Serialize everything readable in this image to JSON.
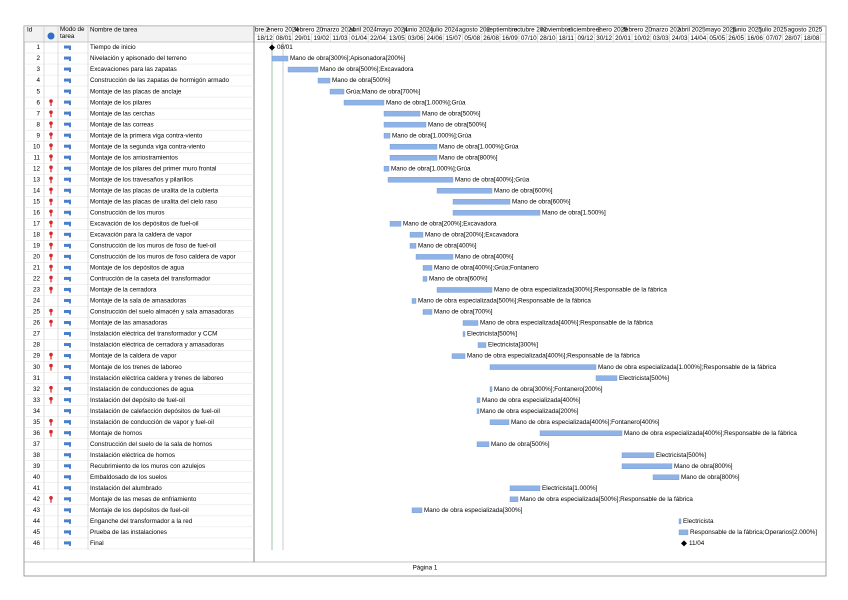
{
  "header": {
    "id": "Id",
    "mode": "Modo de tarea",
    "name": "Nombre de tarea",
    "months": [
      "bre 2",
      "enero 2024",
      "febrero 20",
      "marzo 2024",
      "abril 2024",
      "mayo 2024",
      "junio 2024",
      "julio 2024",
      "agosto 202",
      "septiembre",
      "octubre 202",
      "noviembre",
      "diciembre 2",
      "enero 2025",
      "febrero 20",
      "marzo 202",
      "abril 2025",
      "mayo 2025",
      "junio 2025",
      "julio 2025",
      "agosto 2025"
    ],
    "dates": [
      "18/12",
      "08/01",
      "29/01",
      "19/02",
      "11/03",
      "01/04",
      "22/04",
      "13/05",
      "03/06",
      "24/06",
      "15/07",
      "05/08",
      "26/08",
      "16/09",
      "07/10",
      "28/10",
      "18/11",
      "09/12",
      "30/12",
      "20/01",
      "10/02",
      "03/03",
      "24/03",
      "14/04",
      "05/05",
      "26/05",
      "16/06",
      "07/07",
      "28/07",
      "18/08"
    ]
  },
  "tasks": [
    {
      "id": 1,
      "flag": false,
      "name": "Tiempo de inicio",
      "label": "08/01"
    },
    {
      "id": 2,
      "flag": false,
      "name": "Nivelación y apisonado del terreno",
      "label": "Mano de obra[300%];Apisonadora[200%]"
    },
    {
      "id": 3,
      "flag": false,
      "name": "Excavaciones para las zapatas",
      "label": "Mano de obra[500%];Excavadora"
    },
    {
      "id": 4,
      "flag": false,
      "name": "Construcción de las zapatas de hormigón armado",
      "label": "Mano de obra[500%]"
    },
    {
      "id": 5,
      "flag": false,
      "name": "Montaje de las placas de anclaje",
      "label": "Grúa;Mano de obra[700%]"
    },
    {
      "id": 6,
      "flag": true,
      "name": "Montaje de los pilares",
      "label": "Mano de obra[1.000%];Grúa"
    },
    {
      "id": 7,
      "flag": true,
      "name": "Montaje de las cerchas",
      "label": "Mano de obra[500%]"
    },
    {
      "id": 8,
      "flag": true,
      "name": "Montaje de las correas",
      "label": "Mano de obra[500%]"
    },
    {
      "id": 9,
      "flag": true,
      "name": "Montaje de la primera viga contra-viento",
      "label": "Mano de obra[1.000%];Grúa"
    },
    {
      "id": 10,
      "flag": true,
      "name": "Montaje de la segunda viga contra-viento",
      "label": "Mano de obra[1.000%];Grúa"
    },
    {
      "id": 11,
      "flag": true,
      "name": "Montaje de los arriostramientos",
      "label": "Mano de obra[800%]"
    },
    {
      "id": 12,
      "flag": true,
      "name": "Montaje de los pilares del primer muro frontal",
      "label": "Mano de obra[1.000%];Grúa"
    },
    {
      "id": 13,
      "flag": true,
      "name": "Montaje de los travesaños y pilarillos",
      "label": "Mano de obra[400%];Grúa"
    },
    {
      "id": 14,
      "flag": true,
      "name": "Montaje de las placas de uralita de la cubierta",
      "label": "Mano de obra[600%]"
    },
    {
      "id": 15,
      "flag": true,
      "name": "Montaje de las placas de uralita del cielo raso",
      "label": "Mano de obra[600%]"
    },
    {
      "id": 16,
      "flag": true,
      "name": "Construcción de los muros",
      "label": "Mano de obra[1.500%]"
    },
    {
      "id": 17,
      "flag": true,
      "name": "Excavación de los depósitos de fuel-oil",
      "label": "Mano de obra[200%];Excavadora"
    },
    {
      "id": 18,
      "flag": true,
      "name": "Excavación para la caldera de vapor",
      "label": "Mano de obra[200%];Excavadora"
    },
    {
      "id": 19,
      "flag": true,
      "name": "Construcción de los muros de foso de fuel-oil",
      "label": "Mano de obra[400%]"
    },
    {
      "id": 20,
      "flag": true,
      "name": "Construcción de los muros de foso caldera de vapor",
      "label": "Mano de obra[400%]"
    },
    {
      "id": 21,
      "flag": true,
      "name": "Montaje de los depósitos de agua",
      "label": "Mano de obra[400%];Grúa;Fontanero"
    },
    {
      "id": 22,
      "flag": true,
      "name": "Contrucción de la caseta del transformador",
      "label": "Mano de obra[600%]"
    },
    {
      "id": 23,
      "flag": true,
      "name": "Montaje de la cerradora",
      "label": "Mano de obra especializada[300%];Responsable de la fábrica"
    },
    {
      "id": 24,
      "flag": false,
      "name": "Montaje de la sala de amasadoras",
      "label": "Mano de obra especializada[500%];Responsable de la fábrica"
    },
    {
      "id": 25,
      "flag": true,
      "name": "Construcción del suelo almacén y sala amasadoras",
      "label": "Mano de obra[700%]"
    },
    {
      "id": 26,
      "flag": true,
      "name": "Montaje de las amasadoras",
      "label": "Mano de obra especializada[400%];Responsable de la fábrica"
    },
    {
      "id": 27,
      "flag": false,
      "name": "Instalación eléctrica del transformador y CCM",
      "label": "Electricista[500%]"
    },
    {
      "id": 28,
      "flag": false,
      "name": "Instalación eléctrica de cerradora y amasadoras",
      "label": "Electricista[300%]"
    },
    {
      "id": 29,
      "flag": true,
      "name": "Montaje de la caldera de vapor",
      "label": "Mano de obra especializada[400%];Responsable de la fábrica"
    },
    {
      "id": 30,
      "flag": true,
      "name": "Montaje de los trenes de laboreo",
      "label": "Mano de obra especializada[1.000%];Responsable de la fábrica"
    },
    {
      "id": 31,
      "flag": false,
      "name": "Instalación eléctrica caldera y trenes de laboreo",
      "label": "Electricista[500%]"
    },
    {
      "id": 32,
      "flag": true,
      "name": "Instalación de conducciones de agua",
      "label": "Mano de obra[300%];Fontanero[200%]"
    },
    {
      "id": 33,
      "flag": true,
      "name": "Instalación del depósito de fuel-oil",
      "label": "Mano de obra especializada[400%]"
    },
    {
      "id": 34,
      "flag": false,
      "name": "Instalación de calefacción depósitos de fuel-oil",
      "label": "Mano de obra especializada[200%]"
    },
    {
      "id": 35,
      "flag": true,
      "name": "Instalación de conducción de vapor y fuel-oil",
      "label": "Mano de obra especializada[400%];Fontanero[400%]"
    },
    {
      "id": 36,
      "flag": true,
      "name": "Montaje de hornos",
      "label": "Mano de obra especializada[400%];Responsable de la fábrica"
    },
    {
      "id": 37,
      "flag": false,
      "name": "Construcción del suelo de la sala de hornos",
      "label": "Mano de obra[500%]"
    },
    {
      "id": 38,
      "flag": false,
      "name": "Instalación eléctrica de hornos",
      "label": "Electricista[500%]"
    },
    {
      "id": 39,
      "flag": false,
      "name": "Recubrimiento de los muros con azulejos",
      "label": "Mano de obra[800%]"
    },
    {
      "id": 40,
      "flag": false,
      "name": "Embaldosado de los suelos",
      "label": "Mano de obra[800%]"
    },
    {
      "id": 41,
      "flag": false,
      "name": "Instalación del alumbrado",
      "label": "Electricista[1.000%]"
    },
    {
      "id": 42,
      "flag": true,
      "name": "Montaje de las mesas de enfriamiento",
      "label": "Mano de obra especializada[500%];Responsable de la fábrica"
    },
    {
      "id": 43,
      "flag": false,
      "name": "Montaje de los depósitos de fuel-oil",
      "label": "Mano de obra especializada[300%]"
    },
    {
      "id": 44,
      "flag": false,
      "name": "Enganche del transformador a la red",
      "label": "Electricista"
    },
    {
      "id": 45,
      "flag": false,
      "name": "Prueba de las instalaciones",
      "label": "Responsable de la fábrica;Operarios[2.000%]"
    },
    {
      "id": 46,
      "flag": false,
      "name": "Final",
      "label": "11/04"
    }
  ],
  "footer": "Página 1"
}
